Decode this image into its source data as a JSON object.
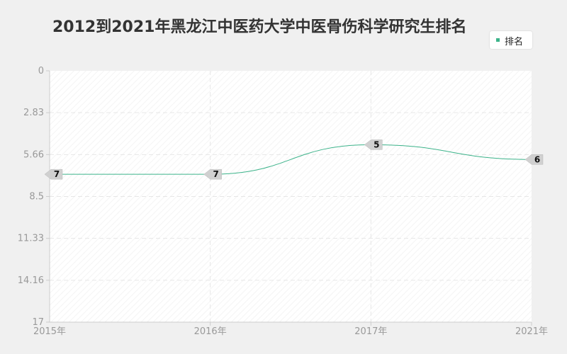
{
  "chart_data": {
    "type": "line",
    "title": "2012到2021年黑龙江中医药大学中医骨伤科学研究生排名",
    "categories": [
      "2015年",
      "2016年",
      "2017年",
      "2021年"
    ],
    "series": [
      {
        "name": "排名",
        "values": [
          7,
          7,
          5,
          6
        ],
        "color": "#3cb38a"
      }
    ],
    "ylim": [
      0,
      17
    ],
    "y_inverted": true,
    "y_ticks": [
      "0",
      "2.83",
      "5.66",
      "8.5",
      "11.33",
      "14.16",
      "17"
    ],
    "grid": true,
    "legend": "top-right"
  }
}
